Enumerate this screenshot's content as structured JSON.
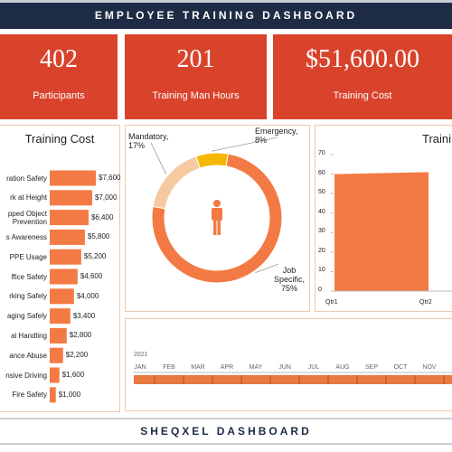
{
  "header": {
    "title": "EMPLOYEE TRAINING DASHBOARD"
  },
  "kpis": [
    {
      "value": 402,
      "label": "Participants"
    },
    {
      "value": 201,
      "label": "Training Man Hours"
    },
    {
      "value": "$51,600.00",
      "label": "Training Cost"
    }
  ],
  "chart_data": [
    {
      "type": "hbar",
      "title": "Training Cost",
      "categories": [
        "ration Safety",
        "rk at Height",
        "pped Object Prevention",
        "s Awareness",
        "PPE Usage",
        "ffice Safety",
        "rking Safely",
        "aging Safely",
        "al Handling",
        "ance Abuse",
        "nsive Driving",
        "Fire Safety"
      ],
      "values": [
        7600,
        7000,
        6400,
        5800,
        5200,
        4600,
        4000,
        3400,
        2800,
        2200,
        1600,
        1000
      ],
      "value_labels": [
        "$7,600",
        "$7,000",
        "$6,400",
        "$5,800",
        "$5,200",
        "$4,600",
        "$4,000",
        "$3,400",
        "$2,800",
        "$2,200",
        "$1,600",
        "$1,000"
      ],
      "color": "#f47a45"
    },
    {
      "type": "donut",
      "values": [
        17,
        8,
        75
      ],
      "value_labels": [
        "Mandatory, 17%",
        "Emergency, 8%",
        "Job Specific, 75%"
      ],
      "colors": [
        "#f6c9a0",
        "#f5b800",
        "#f47a45"
      ]
    },
    {
      "type": "area",
      "title": "Traini",
      "categories": [
        "Qtr1",
        "Qtr2"
      ],
      "values": [
        60,
        61
      ],
      "color": "#f47a45",
      "ylim": [
        0,
        70
      ],
      "yticks": [
        0,
        10,
        20,
        30,
        40,
        50,
        60,
        70
      ]
    }
  ],
  "timeline": {
    "year": "2021",
    "months": [
      "JAN",
      "FEB",
      "MAR",
      "APR",
      "MAY",
      "JUN",
      "JUL",
      "AUG",
      "SEP",
      "OCT",
      "NOV"
    ]
  },
  "footer": {
    "title": "SHEQXEL DASHBOARD"
  }
}
